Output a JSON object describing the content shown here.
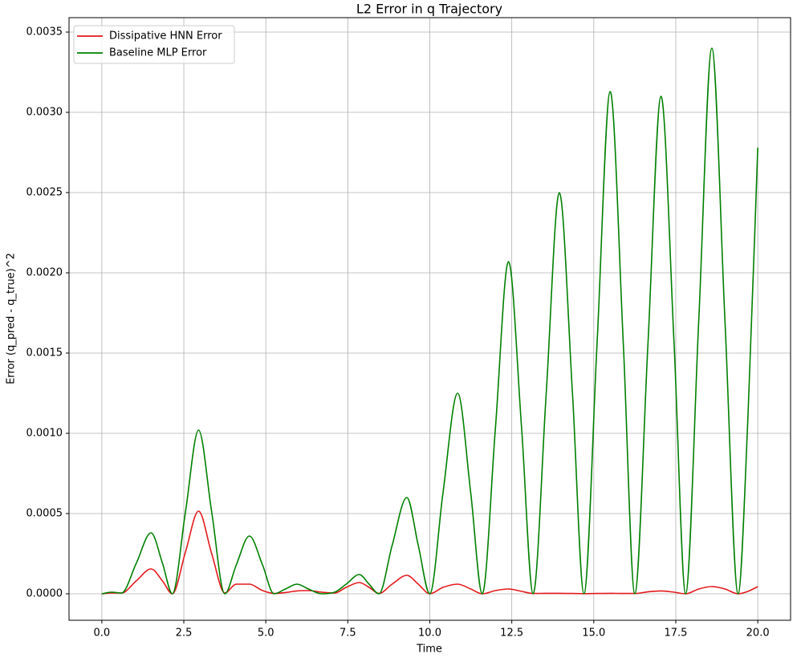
{
  "chart_data": {
    "type": "line",
    "title": "L2 Error in q Trajectory",
    "x_label": "Time",
    "y_label": "Error (q_pred - q_true)^2",
    "x": [
      0,
      0.3,
      0.6,
      1.05,
      1.5,
      1.85,
      2.15,
      2.55,
      2.95,
      3.35,
      3.75,
      4.1,
      4.5,
      4.9,
      5.25,
      5.6,
      5.95,
      6.3,
      6.7,
      7.1,
      7.45,
      7.85,
      8.15,
      8.45,
      8.85,
      9.3,
      9.65,
      10.0,
      10.4,
      10.85,
      11.25,
      11.6,
      12.0,
      12.4,
      12.8,
      13.15,
      13.55,
      13.95,
      14.35,
      14.7,
      15.1,
      15.5,
      15.9,
      16.25,
      16.65,
      17.05,
      17.45,
      17.8,
      18.2,
      18.6,
      19.0,
      19.4,
      19.7,
      20.0
    ],
    "series": [
      {
        "name": "Dissipative HNN Error",
        "color": "#e31a1c",
        "values": [
          0,
          5e-06,
          5e-06,
          8e-05,
          0.000155,
          8e-05,
          0,
          0.00026,
          0.000515,
          0.00025,
          5e-06,
          6e-05,
          6e-05,
          2e-05,
          2e-06,
          8e-06,
          1.8e-05,
          2e-05,
          1e-05,
          5e-06,
          4e-05,
          7e-05,
          4e-05,
          2e-06,
          6e-05,
          0.000115,
          6e-05,
          0,
          4e-05,
          6e-05,
          3e-05,
          0,
          2e-05,
          3e-05,
          1.5e-05,
          2e-06,
          3e-06,
          3e-06,
          2e-06,
          1e-06,
          2e-06,
          3e-06,
          2e-06,
          2e-06,
          1.2e-05,
          1.8e-05,
          1e-05,
          0,
          3e-05,
          4.5e-05,
          3e-05,
          0,
          1.5e-05,
          4.5e-05
        ]
      },
      {
        "name": "Baseline MLP Error",
        "color": "#008000",
        "values": [
          0,
          1e-05,
          5e-06,
          0.00019,
          0.00038,
          0.00019,
          0,
          0.00051,
          0.00102,
          0.00051,
          0,
          0.00018,
          0.00036,
          0.00018,
          0,
          3e-05,
          6e-05,
          3e-05,
          0,
          1e-05,
          6e-05,
          0.00012,
          6e-05,
          0,
          0.0003,
          0.0006,
          0.0003,
          0,
          0.000625,
          0.00125,
          0.000625,
          0,
          0.00103,
          0.00207,
          0.00103,
          0,
          0.00125,
          0.0025,
          0.00125,
          0,
          0.00156,
          0.00313,
          0.00156,
          0,
          0.00155,
          0.0031,
          0.00155,
          0,
          0.0017,
          0.0034,
          0.0017,
          0,
          0.0011,
          0.00278
        ]
      }
    ],
    "xlim": [
      -1,
      21
    ],
    "ylim": [
      -0.000165,
      0.00359
    ],
    "xticks": [
      {
        "value": 0,
        "label": "0.0"
      },
      {
        "value": 2.5,
        "label": "2.5"
      },
      {
        "value": 5,
        "label": "5.0"
      },
      {
        "value": 7.5,
        "label": "7.5"
      },
      {
        "value": 10,
        "label": "10.0"
      },
      {
        "value": 12.5,
        "label": "12.5"
      },
      {
        "value": 15,
        "label": "15.0"
      },
      {
        "value": 17.5,
        "label": "17.5"
      },
      {
        "value": 20,
        "label": "20.0"
      }
    ],
    "yticks": [
      {
        "value": 0,
        "label": "0.0000"
      },
      {
        "value": 0.0005,
        "label": "0.0005"
      },
      {
        "value": 0.001,
        "label": "0.0010"
      },
      {
        "value": 0.0015,
        "label": "0.0015"
      },
      {
        "value": 0.002,
        "label": "0.0020"
      },
      {
        "value": 0.0025,
        "label": "0.0025"
      },
      {
        "value": 0.003,
        "label": "0.0030"
      },
      {
        "value": 0.0035,
        "label": "0.0035"
      }
    ],
    "grid": true,
    "legend": "upper left"
  }
}
